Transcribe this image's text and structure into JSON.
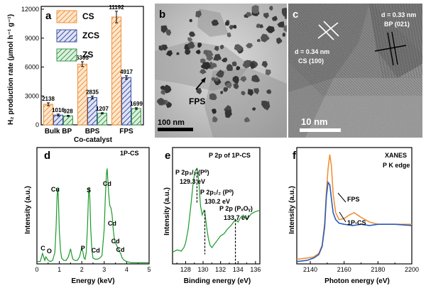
{
  "panel_letters": [
    "a",
    "b",
    "c",
    "d",
    "e",
    "f"
  ],
  "chart_data": [
    {
      "type": "bar",
      "panel": "a",
      "categories": [
        "Bulk BP",
        "BPS",
        "FPS"
      ],
      "series": [
        {
          "name": "CS",
          "values": [
            2138,
            6303,
            11192
          ],
          "color": "#f0923a",
          "errors": [
            150,
            250,
            600
          ]
        },
        {
          "name": "ZCS",
          "values": [
            1016,
            2835,
            4917
          ],
          "color": "#3b4fa3",
          "errors": [
            100,
            150,
            180
          ]
        },
        {
          "name": "ZS",
          "values": [
            928,
            1207,
            1699
          ],
          "color": "#3a9a4a",
          "errors": [
            60,
            60,
            80
          ]
        }
      ],
      "value_labels": [
        "2138",
        "1016",
        "928",
        "6303",
        "2835",
        "1207",
        "11192",
        "4917",
        "1699"
      ],
      "xlabel": "Co-catalyst",
      "ylabel": "H₂ production rate (μmol h⁻¹ g⁻¹)",
      "ylim": [
        0,
        12000
      ],
      "yticks": [
        "0",
        "3000",
        "6000",
        "9000",
        "12000"
      ],
      "legend": "top-left"
    },
    {
      "type": "line",
      "panel": "d",
      "series": [
        {
          "name": "1P-CS",
          "color": "#1a9a2a"
        }
      ],
      "x": [
        0.0,
        0.15,
        0.25,
        0.35,
        0.4,
        0.5,
        0.6,
        0.7,
        0.8,
        0.85,
        0.9,
        0.93,
        0.96,
        1.0,
        1.05,
        1.1,
        1.2,
        1.3,
        1.4,
        1.5,
        1.55,
        1.6,
        1.7,
        1.8,
        1.9,
        2.0,
        2.05,
        2.1,
        2.15,
        2.2,
        2.25,
        2.3,
        2.33,
        2.36,
        2.4,
        2.45,
        2.5,
        2.6,
        2.7,
        2.8,
        2.9,
        3.0,
        3.05,
        3.1,
        3.13,
        3.16,
        3.2,
        3.25,
        3.3,
        3.35,
        3.4,
        3.45,
        3.5,
        3.55,
        3.6,
        3.65,
        3.7,
        3.75,
        3.8,
        3.9,
        4.0,
        4.2,
        4.5,
        5.0
      ],
      "y": [
        0.02,
        0.02,
        0.09,
        0.03,
        0.06,
        0.03,
        0.02,
        0.03,
        0.1,
        0.3,
        0.58,
        0.66,
        0.55,
        0.28,
        0.12,
        0.05,
        0.03,
        0.03,
        0.06,
        0.13,
        0.08,
        0.04,
        0.03,
        0.03,
        0.06,
        0.14,
        0.1,
        0.05,
        0.04,
        0.1,
        0.3,
        0.6,
        0.66,
        0.55,
        0.3,
        0.12,
        0.05,
        0.04,
        0.04,
        0.05,
        0.07,
        0.3,
        0.58,
        0.78,
        0.82,
        0.72,
        0.6,
        0.5,
        0.48,
        0.42,
        0.3,
        0.22,
        0.18,
        0.16,
        0.14,
        0.12,
        0.1,
        0.08,
        0.05,
        0.03,
        0.02,
        0.01,
        0.01,
        0.01
      ],
      "peak_labels": [
        "C",
        "O",
        "Cu",
        "S",
        "P",
        "Cd",
        "Cd",
        "Cd",
        "Cd",
        "Cd"
      ],
      "title": "1P-CS",
      "xlabel": "Energy (keV)",
      "ylabel": "Intensity (a.u.)",
      "xlim": [
        0,
        5
      ],
      "xticks": [
        "0",
        "1",
        "2",
        "3",
        "4",
        "5"
      ]
    },
    {
      "type": "line",
      "panel": "e",
      "series": [
        {
          "name": "P 2p of 1P-CS",
          "color": "#1a9a2a"
        }
      ],
      "x": [
        126.5,
        127,
        127.5,
        127.8,
        128,
        128.3,
        128.6,
        128.9,
        129.1,
        129.3,
        129.5,
        129.7,
        129.9,
        130.1,
        130.2,
        130.4,
        130.6,
        130.8,
        131,
        131.3,
        131.6,
        132,
        132.4,
        132.8,
        133.2,
        133.5,
        133.7,
        134,
        134.3,
        134.6,
        135,
        135.5,
        136,
        136.5
      ],
      "y": [
        0.1,
        0.12,
        0.11,
        0.14,
        0.18,
        0.3,
        0.5,
        0.72,
        0.8,
        0.82,
        0.72,
        0.5,
        0.42,
        0.46,
        0.44,
        0.32,
        0.22,
        0.16,
        0.14,
        0.17,
        0.2,
        0.24,
        0.26,
        0.3,
        0.33,
        0.36,
        0.38,
        0.36,
        0.4,
        0.42,
        0.38,
        0.43,
        0.45,
        0.46
      ],
      "annotations": [
        {
          "text": "P 2p₃/₂ (P⁰)",
          "sub": "129.3 eV"
        },
        {
          "text": "P 2p₁/₂ (P⁰)",
          "sub": "130.2 eV"
        },
        {
          "text": "P 2p (PₓOᵧ)",
          "sub": "133.7 eV"
        }
      ],
      "title": "P 2p of 1P-CS",
      "xlabel": "Binding energy (eV)",
      "ylabel": "Intensity (a.u.)",
      "xlim": [
        126.5,
        136.5
      ],
      "xticks": [
        "128",
        "130",
        "132",
        "134",
        "136"
      ]
    },
    {
      "type": "line",
      "panel": "f",
      "series": [
        {
          "name": "FPS",
          "color": "#f0923a",
          "x": [
            2132,
            2138,
            2142,
            2145,
            2147,
            2148.5,
            2149.5,
            2150.5,
            2151.5,
            2152.5,
            2153.5,
            2155,
            2157,
            2160,
            2163,
            2166,
            2170,
            2175,
            2180,
            2190,
            2200
          ],
          "y": [
            0.04,
            0.05,
            0.06,
            0.09,
            0.16,
            0.35,
            0.62,
            0.82,
            0.94,
            0.84,
            0.6,
            0.44,
            0.38,
            0.39,
            0.42,
            0.44,
            0.4,
            0.36,
            0.34,
            0.34,
            0.34
          ]
        },
        {
          "name": "1P-CS",
          "color": "#2c5cb8",
          "x": [
            2132,
            2138,
            2142,
            2145,
            2147,
            2148.5,
            2149.5,
            2150.5,
            2151.5,
            2152.5,
            2153.5,
            2155,
            2157,
            2160,
            2165,
            2170,
            2175,
            2180,
            2190,
            2200
          ],
          "y": [
            0.02,
            0.03,
            0.05,
            0.08,
            0.15,
            0.32,
            0.58,
            0.7,
            0.68,
            0.56,
            0.44,
            0.38,
            0.35,
            0.34,
            0.33,
            0.34,
            0.33,
            0.34,
            0.34,
            0.33
          ]
        }
      ],
      "title": "XANES",
      "subtitle": "P K edge",
      "xlabel": "Photon energy (eV)",
      "ylabel": "Intensity (a.u.)",
      "xlim": [
        2132,
        2200
      ],
      "xticks": [
        "2140",
        "2160",
        "2180",
        "2200"
      ]
    }
  ],
  "images": {
    "b": {
      "label": "FPS",
      "scale": "100 nm"
    },
    "c": {
      "d1": "d = 0.34 nm",
      "plane1": "CS (100)",
      "d2": "d = 0.33 nm",
      "plane2": "BP (021)",
      "scale": "10 nm"
    }
  }
}
